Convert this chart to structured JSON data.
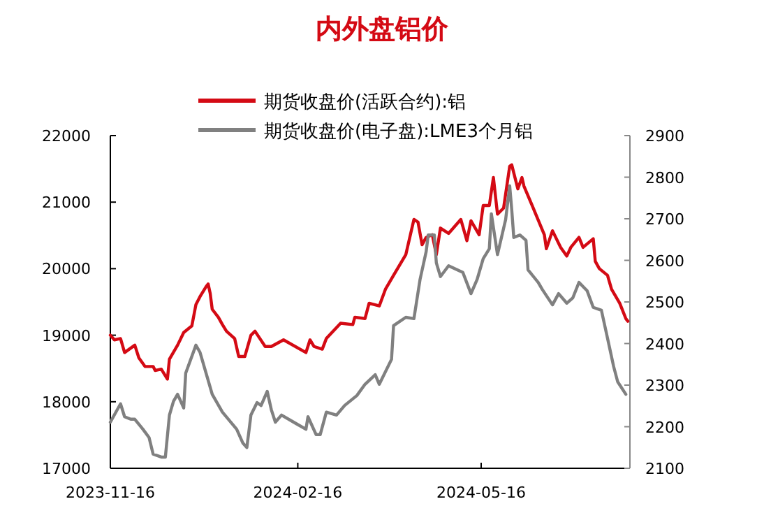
{
  "chart_data": {
    "type": "line",
    "title": "内外盘铝价",
    "legend": "top",
    "grid": false,
    "xlim": [
      "2023-11-16",
      "2024-07-28"
    ],
    "xticks": [
      {
        "value": "2023-11-16",
        "label": "2023-11-16"
      },
      {
        "value": "2024-02-16",
        "label": "2024-02-16"
      },
      {
        "value": "2024-05-16",
        "label": "2024-05-16"
      }
    ],
    "ylim": [
      17000,
      22000
    ],
    "yticks": [
      17000,
      18000,
      19000,
      20000,
      21000,
      22000
    ],
    "y2lim": [
      2100,
      2900
    ],
    "y2ticks": [
      2100,
      2200,
      2300,
      2400,
      2500,
      2600,
      2700,
      2800,
      2900
    ],
    "series": [
      {
        "name": "期货收盘价(活跃合约):铝",
        "color": "#d40a14",
        "x": [
          "2023-11-16",
          "2023-11-18",
          "2023-11-21",
          "2023-11-23",
          "2023-11-28",
          "2023-11-30",
          "2023-12-03",
          "2023-12-07",
          "2023-12-08",
          "2023-12-11",
          "2023-12-14",
          "2023-12-15",
          "2023-12-19",
          "2023-12-22",
          "2023-12-26",
          "2023-12-28",
          "2023-12-30",
          "2024-01-02",
          "2024-01-03",
          "2024-01-04",
          "2024-01-05",
          "2024-01-08",
          "2024-01-10",
          "2024-01-12",
          "2024-01-16",
          "2024-01-18",
          "2024-01-21",
          "2024-01-24",
          "2024-01-26",
          "2024-01-31",
          "2024-02-03",
          "2024-02-09",
          "2024-02-20",
          "2024-02-22",
          "2024-02-24",
          "2024-02-28",
          "2024-03-01",
          "2024-03-08",
          "2024-03-14",
          "2024-03-15",
          "2024-03-20",
          "2024-03-22",
          "2024-03-27",
          "2024-03-30",
          "2024-04-03",
          "2024-04-09",
          "2024-04-13",
          "2024-04-15",
          "2024-04-17",
          "2024-04-19",
          "2024-04-22",
          "2024-04-24",
          "2024-04-26",
          "2024-04-30",
          "2024-05-06",
          "2024-05-09",
          "2024-05-11",
          "2024-05-15",
          "2024-05-17",
          "2024-05-20",
          "2024-05-22",
          "2024-05-24",
          "2024-05-27",
          "2024-05-30",
          "2024-05-31",
          "2024-06-03",
          "2024-06-05",
          "2024-06-06",
          "2024-06-10",
          "2024-06-16",
          "2024-06-17",
          "2024-06-20",
          "2024-06-24",
          "2024-06-27",
          "2024-06-29",
          "2024-07-03",
          "2024-07-05",
          "2024-07-10",
          "2024-07-11",
          "2024-07-13",
          "2024-07-17",
          "2024-07-19",
          "2024-07-23",
          "2024-07-26",
          "2024-07-27"
        ],
        "values": [
          19000,
          18930,
          18950,
          18740,
          18850,
          18660,
          18530,
          18530,
          18470,
          18490,
          18340,
          18640,
          18850,
          19040,
          19140,
          19460,
          19580,
          19730,
          19770,
          19630,
          19390,
          19270,
          19160,
          19060,
          18950,
          18680,
          18680,
          19000,
          19060,
          18830,
          18830,
          18930,
          18740,
          18930,
          18830,
          18790,
          18950,
          19180,
          19160,
          19270,
          19250,
          19480,
          19440,
          19690,
          19900,
          20210,
          20740,
          20700,
          20360,
          20470,
          20510,
          20210,
          20610,
          20530,
          20740,
          20420,
          20720,
          20510,
          20950,
          20950,
          21370,
          20820,
          20910,
          21540,
          21560,
          21200,
          21370,
          21240,
          20950,
          20510,
          20300,
          20570,
          20320,
          20190,
          20320,
          20470,
          20320,
          20450,
          20110,
          20000,
          19900,
          19690,
          19480,
          19250,
          19210
        ]
      },
      {
        "name": "期货收盘价(电子盘):LME3个月铝",
        "color": "#808080",
        "axis": "y2",
        "x": [
          "2023-11-16",
          "2023-11-21",
          "2023-11-23",
          "2023-11-26",
          "2023-11-28",
          "2023-12-02",
          "2023-12-05",
          "2023-12-07",
          "2023-12-11",
          "2023-12-13",
          "2023-12-15",
          "2023-12-17",
          "2023-12-19",
          "2023-12-22",
          "2023-12-23",
          "2023-12-28",
          "2023-12-30",
          "2024-01-05",
          "2024-01-10",
          "2024-01-17",
          "2024-01-20",
          "2024-01-22",
          "2024-01-24",
          "2024-01-27",
          "2024-01-29",
          "2024-02-01",
          "2024-02-03",
          "2024-02-05",
          "2024-02-08",
          "2024-02-15",
          "2024-02-20",
          "2024-02-21",
          "2024-02-25",
          "2024-02-27",
          "2024-03-01",
          "2024-03-06",
          "2024-03-10",
          "2024-03-16",
          "2024-03-20",
          "2024-03-25",
          "2024-03-27",
          "2024-04-02",
          "2024-04-03",
          "2024-04-09",
          "2024-04-13",
          "2024-04-16",
          "2024-04-19",
          "2024-04-20",
          "2024-04-23",
          "2024-04-24",
          "2024-04-26",
          "2024-04-30",
          "2024-05-07",
          "2024-05-11",
          "2024-05-14",
          "2024-05-17",
          "2024-05-20",
          "2024-05-21",
          "2024-05-24",
          "2024-05-28",
          "2024-05-30",
          "2024-05-31",
          "2024-06-01",
          "2024-06-04",
          "2024-06-07",
          "2024-06-08",
          "2024-06-13",
          "2024-06-15",
          "2024-06-20",
          "2024-06-23",
          "2024-06-27",
          "2024-06-30",
          "2024-07-03",
          "2024-07-07",
          "2024-07-10",
          "2024-07-14",
          "2024-07-17",
          "2024-07-20",
          "2024-07-22",
          "2024-07-26"
        ],
        "values": [
          2211,
          2255,
          2224,
          2218,
          2218,
          2194,
          2174,
          2134,
          2127,
          2127,
          2228,
          2261,
          2278,
          2245,
          2329,
          2396,
          2379,
          2278,
          2235,
          2194,
          2161,
          2150,
          2228,
          2258,
          2251,
          2285,
          2241,
          2211,
          2228,
          2208,
          2194,
          2224,
          2181,
          2181,
          2235,
          2228,
          2251,
          2275,
          2302,
          2325,
          2302,
          2362,
          2443,
          2463,
          2460,
          2554,
          2621,
          2661,
          2661,
          2594,
          2561,
          2587,
          2571,
          2520,
          2554,
          2604,
          2628,
          2712,
          2614,
          2698,
          2779,
          2722,
          2655,
          2661,
          2648,
          2577,
          2547,
          2530,
          2493,
          2520,
          2497,
          2510,
          2547,
          2527,
          2487,
          2480,
          2413,
          2345,
          2308,
          2278
        ]
      }
    ]
  }
}
